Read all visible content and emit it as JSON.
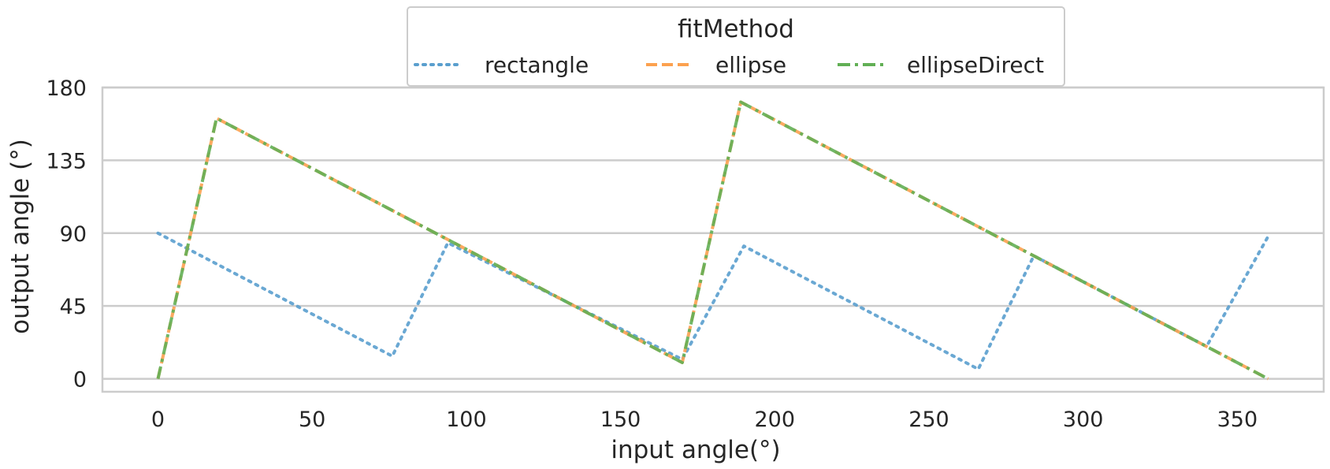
{
  "chart_data": {
    "type": "line",
    "xlabel": "input angle(°)",
    "ylabel": "output angle (°)",
    "xlim": [
      -18,
      378
    ],
    "ylim": [
      -8,
      180
    ],
    "xticks": [
      0,
      50,
      100,
      150,
      200,
      250,
      300,
      350
    ],
    "yticks": [
      0,
      45,
      90,
      135,
      180
    ],
    "grid": true,
    "legend": {
      "title": "fitMethod",
      "position": "top-center"
    },
    "series": [
      {
        "name": "rectangle",
        "color": "#5a9fce",
        "dash": "dotted",
        "x": [
          0,
          76,
          94,
          170,
          190,
          266,
          284,
          340,
          360
        ],
        "y": [
          90,
          14,
          84,
          12,
          82,
          6,
          76,
          20,
          88
        ]
      },
      {
        "name": "ellipse",
        "color": "#fca14f",
        "dash": "dashed",
        "x": [
          0,
          19,
          170,
          189,
          360
        ],
        "y": [
          0,
          161,
          10,
          171,
          0
        ]
      },
      {
        "name": "ellipseDirect",
        "color": "#62af55",
        "dash": "dashdot",
        "x": [
          0,
          19,
          170,
          189,
          360
        ],
        "y": [
          0,
          161,
          10,
          171,
          0
        ]
      }
    ]
  }
}
